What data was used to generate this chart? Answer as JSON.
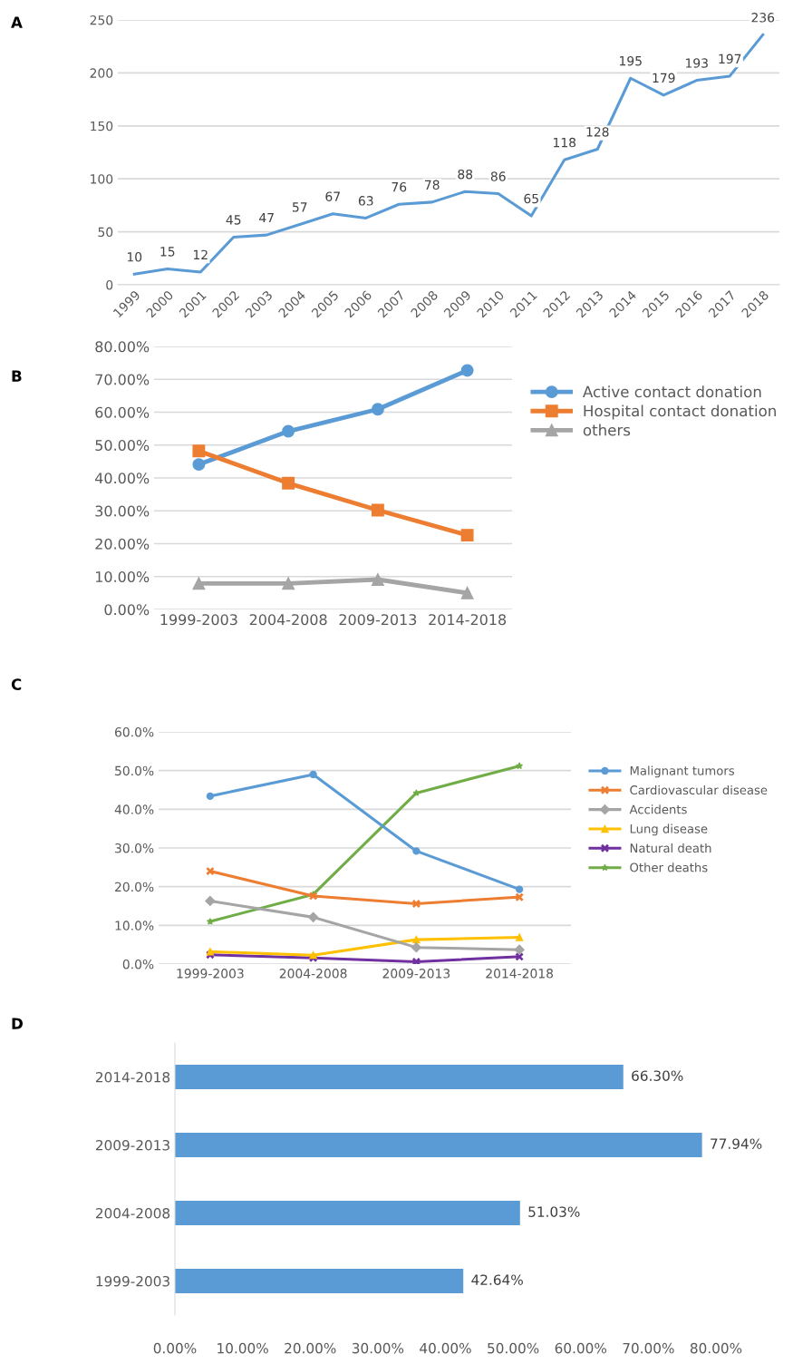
{
  "chart_data": [
    {
      "type": "line",
      "annotations": [
        "A"
      ],
      "categories": [
        "1999",
        "2000",
        "2001",
        "2002",
        "2003",
        "2004",
        "2005",
        "2006",
        "2007",
        "2008",
        "2009",
        "2010",
        "2011",
        "2012",
        "2013",
        "2014",
        "2015",
        "2016",
        "2017",
        "2018"
      ],
      "series": [
        {
          "color": "#5b9bd5",
          "values": [
            10,
            15,
            12,
            45,
            47,
            57,
            67,
            63,
            76,
            78,
            88,
            86,
            65,
            118,
            128,
            195,
            179,
            193,
            197,
            236
          ]
        }
      ],
      "ylim": [
        0,
        250
      ],
      "yticks": [
        0,
        50,
        100,
        150,
        200,
        250
      ],
      "grid": "y",
      "data_labels": true,
      "marker": "none",
      "legend": false
    },
    {
      "type": "line",
      "annotations": [
        "B"
      ],
      "categories": [
        "1999-2003",
        "2004-2008",
        "2009-2013",
        "2014-2018"
      ],
      "series": [
        {
          "name": "Active contact donation",
          "color": "#5b9bd5",
          "marker": "circle",
          "values": [
            44.1,
            54.2,
            60.9,
            72.7
          ]
        },
        {
          "name": "Hospital contact donation",
          "color": "#ed7d31",
          "marker": "square",
          "values": [
            48.2,
            38.4,
            30.2,
            22.6
          ]
        },
        {
          "name": "others",
          "color": "#a5a5a5",
          "marker": "triangle",
          "values": [
            7.9,
            7.9,
            9.1,
            5.0
          ]
        }
      ],
      "ylim": [
        0,
        80
      ],
      "yticks": [
        {
          "value": 0,
          "label": "0.00%"
        },
        {
          "value": 10,
          "label": "10.00%"
        },
        {
          "value": 20,
          "label": "20.00%"
        },
        {
          "value": 30,
          "label": "30.00%"
        },
        {
          "value": 40,
          "label": "40.00%"
        },
        {
          "value": 50,
          "label": "50.00%"
        },
        {
          "value": 60,
          "label": "60.00%"
        },
        {
          "value": 70,
          "label": "70.00%"
        },
        {
          "value": 80,
          "label": "80.00%"
        }
      ],
      "grid": "y",
      "legend": "right"
    },
    {
      "type": "line",
      "annotations": [
        "C"
      ],
      "categories": [
        "1999-2003",
        "2004-2008",
        "2009-2013",
        "2014-2018"
      ],
      "series": [
        {
          "name": "Malignant tumors",
          "color": "#5b9bd5",
          "marker": "circle",
          "values": [
            43.4,
            49.0,
            29.2,
            19.3
          ]
        },
        {
          "name": "Cardiovascular disease",
          "color": "#ed7d31",
          "marker": "cross",
          "values": [
            24.0,
            17.6,
            15.6,
            17.3
          ]
        },
        {
          "name": "Accidents",
          "color": "#a5a5a5",
          "marker": "diamond",
          "values": [
            16.3,
            12.1,
            4.3,
            3.7
          ]
        },
        {
          "name": "Lung disease",
          "color": "#ffc000",
          "marker": "triangle",
          "values": [
            3.2,
            2.3,
            6.3,
            6.9
          ]
        },
        {
          "name": "Natural death",
          "color": "#7030a0",
          "marker": "cross",
          "values": [
            2.4,
            1.6,
            0.6,
            1.9
          ]
        },
        {
          "name": "Other deaths",
          "color": "#70ad47",
          "marker": "star",
          "values": [
            11.0,
            18.0,
            44.2,
            51.2
          ]
        }
      ],
      "ylim": [
        0,
        60
      ],
      "yticks": [
        {
          "value": 0,
          "label": "0.0%"
        },
        {
          "value": 10,
          "label": "10.0%"
        },
        {
          "value": 20,
          "label": "20.0%"
        },
        {
          "value": 30,
          "label": "30.0%"
        },
        {
          "value": 40,
          "label": "40.0%"
        },
        {
          "value": 50,
          "label": "50.0%"
        },
        {
          "value": 60,
          "label": "60.0%"
        }
      ],
      "grid": "y",
      "legend": "right"
    },
    {
      "type": "bar",
      "orientation": "horizontal",
      "annotations": [
        "D"
      ],
      "categories": [
        "2014-2018",
        "2009-2013",
        "2004-2008",
        "1999-2003"
      ],
      "values": [
        66.3,
        77.94,
        51.03,
        42.64
      ],
      "value_labels": [
        "66.30%",
        "77.94%",
        "51.03%",
        "42.64%"
      ],
      "color": "#5b9bd5",
      "xlim": [
        0,
        80
      ],
      "xticks": [
        {
          "value": 0,
          "label": "0.00%"
        },
        {
          "value": 10,
          "label": "10.00%"
        },
        {
          "value": 20,
          "label": "20.00%"
        },
        {
          "value": 30,
          "label": "30.00%"
        },
        {
          "value": 40,
          "label": "40.00%"
        },
        {
          "value": 50,
          "label": "50.00%"
        },
        {
          "value": 60,
          "label": "60.00%"
        },
        {
          "value": 70,
          "label": "70.00%"
        },
        {
          "value": 80,
          "label": "80.00%"
        }
      ]
    }
  ]
}
